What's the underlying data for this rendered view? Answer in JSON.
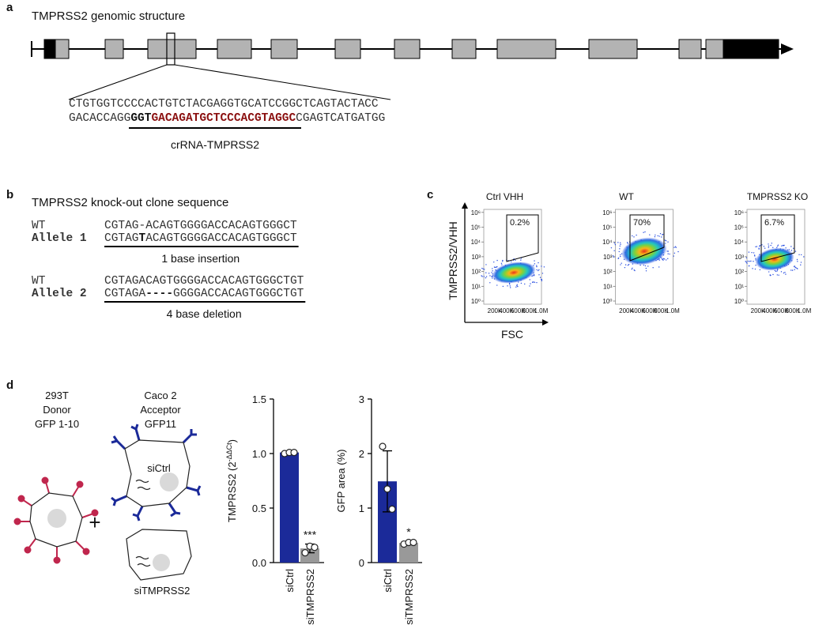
{
  "panel_labels": [
    "a",
    "b",
    "c",
    "d"
  ],
  "panel_a": {
    "title": "TMPRSS2 genomic structure",
    "sequence_top": "CTGTGGTCCCCACTGTCTACGAGGTGCATCCGGCTCAGTACTACC",
    "sequence_bottom": [
      "GACACCAGG",
      "GGT",
      "GACAGATGCTCCCACGTAGGC",
      "CGAGTCATGATGG"
    ],
    "guide_label": "crRNA-TMPRSS2"
  },
  "panel_b": {
    "title": "TMPRSS2 knock-out clone sequence",
    "groups": [
      {
        "rows": [
          {
            "label": "WT",
            "sequence": [
              "CGTAG-ACAGTGGGGACCACAGTGGGCT"
            ]
          },
          {
            "label": "Allele 1",
            "sequence": [
              "CGTAG",
              "T",
              "ACAGTGGGGACCACAGTGGGCT"
            ]
          }
        ],
        "caption": "1 base insertion"
      },
      {
        "rows": [
          {
            "label": "WT",
            "sequence": [
              "CGTAGACAGTGGGGACCACAGTGGGCTGT"
            ]
          },
          {
            "label": "Allele 2",
            "sequence": [
              "CGTAGA",
              "----",
              "GGGGACCACAGTGGGCTGT"
            ]
          }
        ],
        "caption": "4 base deletion"
      }
    ]
  },
  "panel_c": {
    "plots": [
      {
        "title": "Ctrl VHH",
        "gate_label": "0.2%"
      },
      {
        "title": "WT",
        "gate_label": "70%"
      },
      {
        "title": "TMPRSS2 KO",
        "gate_label": "6.7%"
      }
    ],
    "y_label": "TMPRSS2/VHH",
    "x_label": "FSC",
    "y_tick_labels": [
      "10⁰",
      "10¹",
      "10²",
      "10³",
      "10⁴",
      "10⁵",
      "10⁶"
    ],
    "x_tick_labels": [
      "200K",
      "400K",
      "600K",
      "800K",
      "1.0M"
    ]
  },
  "panel_d": {
    "donor": [
      "293T",
      "Donor",
      "GFP 1-10"
    ],
    "acceptor": [
      "Caco 2",
      "Acceptor",
      "GFP11"
    ],
    "plus": "+",
    "cell_labels": [
      "siCtrl",
      "siTMPRSS2"
    ]
  },
  "chart_data": [
    {
      "type": "bar",
      "y_label": "TMPRSS2 (2",
      "y_label_superscript": "-ΔΔCt",
      "y_label_suffix": ")",
      "categories": [
        "siCtrl",
        "siTMPRSS2"
      ],
      "values": [
        1.01,
        0.13
      ],
      "errors": [
        0.01,
        0.04
      ],
      "points": [
        [
          1.0,
          1.01,
          1.01
        ],
        [
          0.09,
          0.15,
          0.14
        ]
      ],
      "colors": [
        "#1b2a99",
        "#999999"
      ],
      "significance": [
        null,
        "***"
      ],
      "ylim": [
        0,
        1.5
      ],
      "yticks": [
        {
          "value": 0,
          "label": "0.0"
        },
        0.5,
        {
          "value": 1,
          "label": "1.0"
        },
        1.5
      ]
    },
    {
      "type": "bar",
      "y_label": "GFP area (%)",
      "categories": [
        "siCtrl",
        "siTMPRSS2"
      ],
      "values": [
        1.49,
        0.36
      ],
      "errors": [
        0.56,
        0.03
      ],
      "points": [
        [
          2.13,
          1.35,
          0.98
        ],
        [
          0.34,
          0.37,
          0.37
        ]
      ],
      "colors": [
        "#1b2a99",
        "#999999"
      ],
      "significance": [
        null,
        "*"
      ],
      "ylim": [
        0,
        3
      ],
      "yticks": [
        0,
        1,
        2,
        3
      ]
    }
  ]
}
